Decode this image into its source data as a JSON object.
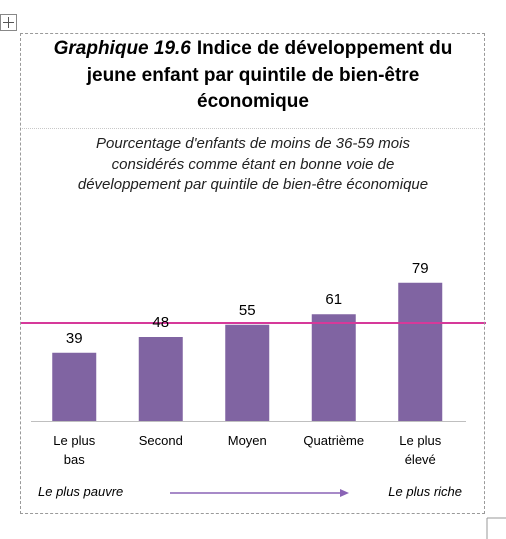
{
  "chart_data": {
    "type": "bar",
    "title_label": "Graphique 19.6",
    "title": "Indice de développement du jeune enfant par quintile de bien-être économique",
    "subtitle": "Pourcentage d'enfants de moins de 36-59 mois considérés comme étant en bonne voie de développement par quintile de bien-être économique",
    "categories": [
      "Le plus\nbas",
      "Second",
      "Moyen",
      "Quatrième",
      "Le plus\nélevé"
    ],
    "values": [
      39,
      48,
      55,
      61,
      79
    ],
    "color": "#8064a2",
    "reference_line": {
      "value": 56,
      "color": "#d6399a"
    },
    "ylim": [
      0,
      100
    ],
    "arrow_left": "Le plus pauvre",
    "arrow_right": "Le plus riche",
    "arrow_color": "#8a63b5"
  }
}
